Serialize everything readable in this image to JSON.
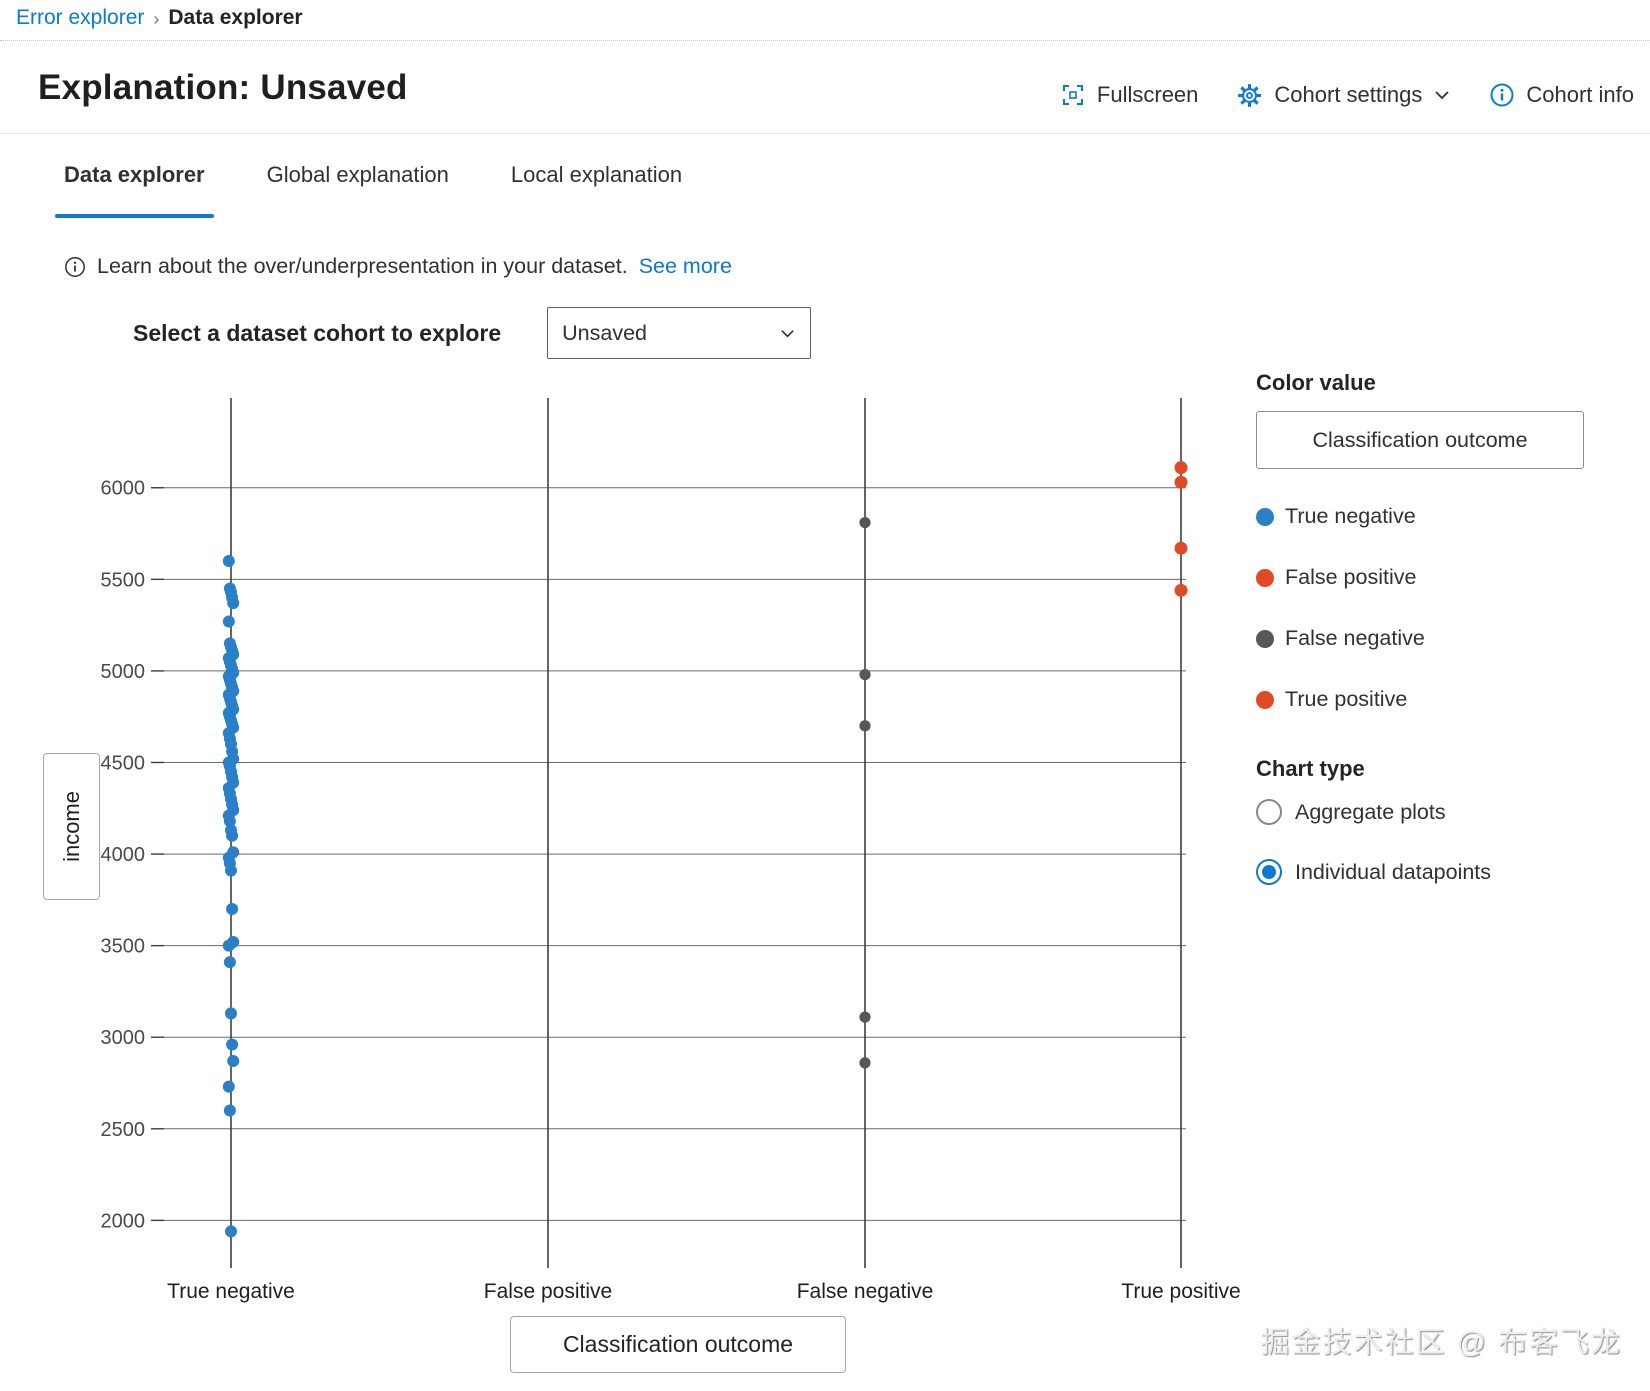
{
  "breadcrumb": {
    "parent": "Error explorer",
    "separator": "›",
    "current": "Data explorer"
  },
  "header": {
    "title": "Explanation: Unsaved",
    "actions": [
      {
        "icon": "fullscreen-icon",
        "label": "Fullscreen"
      },
      {
        "icon": "gear-icon",
        "label": "Cohort settings",
        "has_chevron": true
      },
      {
        "icon": "info-icon",
        "label": "Cohort info"
      }
    ]
  },
  "tabs": [
    {
      "label": "Data explorer",
      "active": true
    },
    {
      "label": "Global explanation",
      "active": false
    },
    {
      "label": "Local explanation",
      "active": false
    }
  ],
  "info_banner": {
    "icon": "info-circle-icon",
    "text": "Learn about the over/underpresentation in your dataset.",
    "link": "See more"
  },
  "cohort_selector": {
    "label": "Select a dataset cohort to explore",
    "value": "Unsaved"
  },
  "right_panel": {
    "color_value_label": "Color value",
    "color_value_button": "Classification outcome",
    "legend": [
      {
        "label": "True negative",
        "color": "#2980c9"
      },
      {
        "label": "False positive",
        "color": "#e04b26"
      },
      {
        "label": "False negative",
        "color": "#575757"
      },
      {
        "label": "True positive",
        "color": "#e04b26"
      }
    ],
    "chart_type_label": "Chart type",
    "chart_type_options": [
      {
        "label": "Aggregate plots",
        "selected": false
      },
      {
        "label": "Individual datapoints",
        "selected": true
      }
    ]
  },
  "chart_data": {
    "type": "scatter",
    "title": "",
    "xlabel": "Classification outcome",
    "ylabel": "income",
    "categories": [
      "True negative",
      "False positive",
      "False negative",
      "True positive"
    ],
    "yticks": [
      2000,
      2500,
      3000,
      3500,
      4000,
      4500,
      5000,
      5500,
      6000
    ],
    "ylim": [
      1740,
      6490
    ],
    "grid": true,
    "legend_position": "right",
    "series": [
      {
        "name": "True negative",
        "color": "#2980c9",
        "values": [
          5600,
          5450,
          5430,
          5400,
          5370,
          5270,
          5150,
          5130,
          5110,
          5090,
          5070,
          5050,
          5030,
          5010,
          4990,
          4970,
          4950,
          4930,
          4910,
          4890,
          4870,
          4850,
          4830,
          4810,
          4790,
          4770,
          4750,
          4730,
          4710,
          4690,
          4660,
          4630,
          4600,
          4560,
          4520,
          4500,
          4480,
          4450,
          4420,
          4390,
          4360,
          4330,
          4300,
          4270,
          4240,
          4210,
          4180,
          4130,
          4100,
          4010,
          3980,
          3950,
          3910,
          3700,
          3520,
          3500,
          3410,
          3130,
          2960,
          2870,
          2730,
          2600,
          1940
        ]
      },
      {
        "name": "False positive",
        "color": "#e04b26",
        "values": []
      },
      {
        "name": "False negative",
        "color": "#575757",
        "values": [
          5810,
          4980,
          4700,
          3110,
          2860
        ]
      },
      {
        "name": "True positive",
        "color": "#e04b26",
        "values": [
          6110,
          6030,
          5670,
          5440
        ]
      }
    ]
  },
  "watermark": "掘金技术社区 @ 布客飞龙"
}
